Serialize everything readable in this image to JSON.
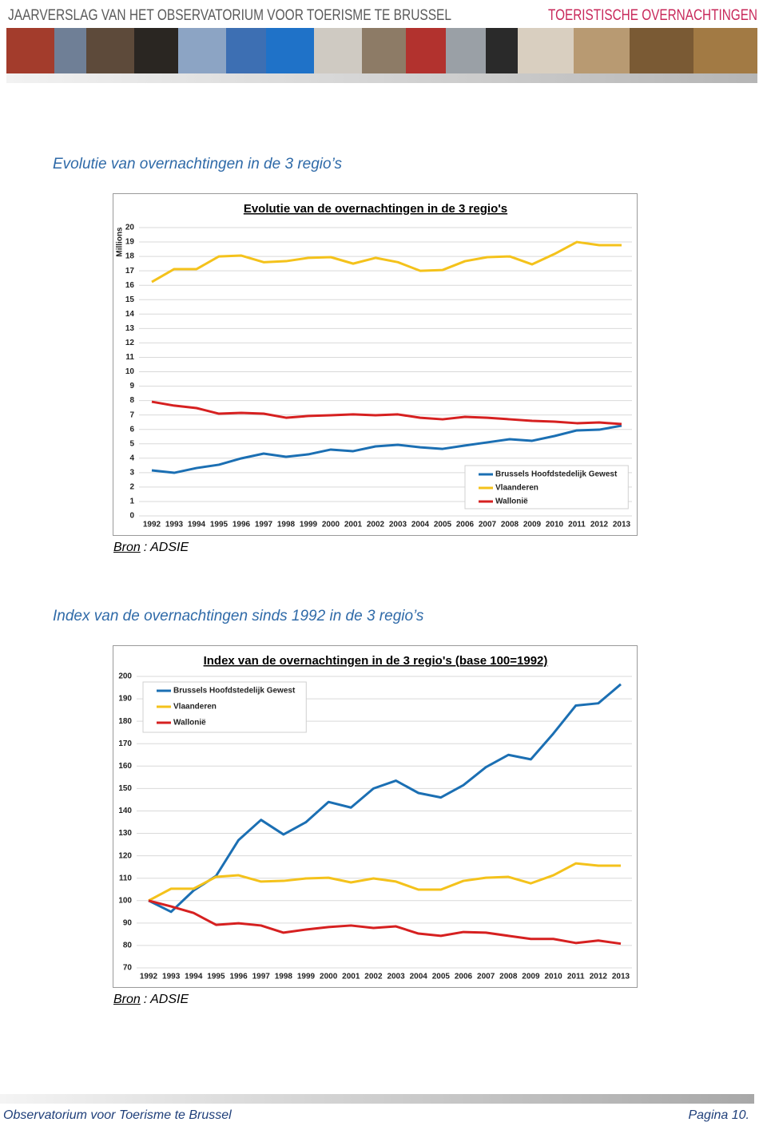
{
  "header": {
    "title": "JAARVERSLAG VAN HET OBSERVATORIUM VOOR TOERISME TE BRUSSEL",
    "section": "TOERISTISCHE OVERNACHTINGEN"
  },
  "sections": [
    {
      "heading": "Evolutie van overnachtingen in de 3 regio’s",
      "source": {
        "label": "Bron",
        "text": ": ADSIE"
      }
    },
    {
      "heading": "Index van de overnachtingen sinds 1992 in de 3 regio’s",
      "source": {
        "label": "Bron",
        "text": ": ADSIE"
      }
    }
  ],
  "chart_data": [
    {
      "type": "line",
      "title": "Evolutie van de overnachtingen in de 3 regio's",
      "ylabel": "Millions",
      "categories": [
        "1992",
        "1993",
        "1994",
        "1995",
        "1996",
        "1997",
        "1998",
        "1999",
        "2000",
        "2001",
        "2002",
        "2003",
        "2004",
        "2005",
        "2006",
        "2007",
        "2008",
        "2009",
        "2010",
        "2011",
        "2012",
        "2013"
      ],
      "series": [
        {
          "name": "Brussels Hoofdstedelijk Gewest",
          "color": "#1b6fb3",
          "values": [
            3.16,
            2.99,
            3.32,
            3.55,
            3.99,
            4.32,
            4.1,
            4.27,
            4.6,
            4.49,
            4.82,
            4.93,
            4.76,
            4.65,
            4.88,
            5.1,
            5.32,
            5.21,
            5.54,
            5.93,
            5.98,
            6.26
          ]
        },
        {
          "name": "Vlaanderen",
          "color": "#f4c21b",
          "values": [
            16.23,
            17.12,
            17.12,
            18.0,
            18.06,
            17.6,
            17.67,
            17.9,
            17.95,
            17.5,
            17.9,
            17.6,
            17.0,
            17.06,
            17.67,
            17.95,
            18.0,
            17.45,
            18.17,
            19.0,
            18.78,
            18.78
          ]
        },
        {
          "name": "Wallonië",
          "color": "#d62020",
          "values": [
            7.92,
            7.65,
            7.48,
            7.09,
            7.15,
            7.09,
            6.81,
            6.93,
            6.98,
            7.04,
            6.98,
            7.04,
            6.81,
            6.7,
            6.87,
            6.81,
            6.7,
            6.59,
            6.54,
            6.43,
            6.48,
            6.37
          ]
        }
      ],
      "ylim": [
        0,
        20
      ],
      "yticks": [
        0,
        1,
        2,
        3,
        4,
        5,
        6,
        7,
        8,
        9,
        10,
        11,
        12,
        13,
        14,
        15,
        16,
        17,
        18,
        19,
        20
      ],
      "grid": true,
      "legend": "lower right"
    },
    {
      "type": "line",
      "title": "Index van de overnachtingen in de 3 regio's (base 100=1992)",
      "categories": [
        "1992",
        "1993",
        "1994",
        "1995",
        "1996",
        "1997",
        "1998",
        "1999",
        "2000",
        "2001",
        "2002",
        "2003",
        "2004",
        "2005",
        "2006",
        "2007",
        "2008",
        "2009",
        "2010",
        "2011",
        "2012",
        "2013"
      ],
      "series": [
        {
          "name": "Brussels Hoofdstedelijk Gewest",
          "color": "#1b6fb3",
          "values": [
            100,
            95,
            104.5,
            111,
            127,
            136,
            129.5,
            135,
            144,
            141.5,
            150,
            153.5,
            148,
            146,
            151.5,
            159.5,
            165,
            163,
            174.5,
            187,
            188,
            196.5
          ]
        },
        {
          "name": "Vlaanderen",
          "color": "#f4c21b",
          "values": [
            100,
            105.3,
            105.3,
            110.6,
            111.3,
            108.5,
            108.8,
            109.9,
            110.2,
            108.1,
            109.9,
            108.5,
            104.9,
            104.9,
            108.8,
            110.2,
            110.6,
            107.7,
            111.3,
            116.6,
            115.6,
            115.6
          ]
        },
        {
          "name": "Wallonië",
          "color": "#d62020",
          "values": [
            100,
            97.4,
            94.5,
            89.2,
            89.9,
            88.9,
            85.7,
            87.1,
            88.2,
            88.9,
            87.8,
            88.5,
            85.3,
            84.3,
            86.0,
            85.7,
            84.3,
            82.9,
            82.9,
            81.1,
            82.2,
            80.8
          ]
        }
      ],
      "ylim": [
        70,
        200
      ],
      "yticks": [
        70,
        80,
        90,
        100,
        110,
        120,
        130,
        140,
        150,
        160,
        170,
        180,
        190,
        200
      ],
      "grid": true,
      "legend": "upper left"
    }
  ],
  "footer": {
    "left": "Observatorium voor Toerisme te Brussel",
    "right": "Pagina 10."
  }
}
